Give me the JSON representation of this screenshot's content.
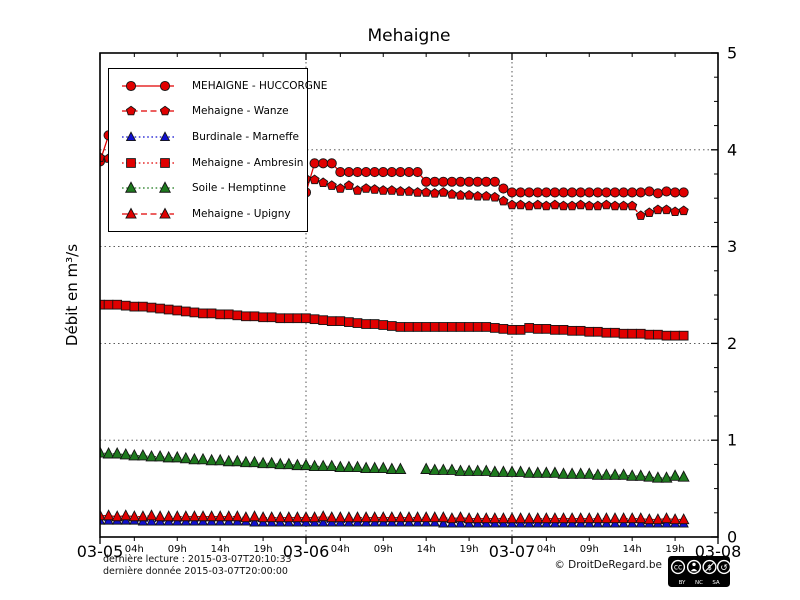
{
  "title": "Mehaigne",
  "ylabel": "Débit en m³/s",
  "footer": {
    "line1": "dernière lecture : 2015-03-07T20:10:33",
    "line2": "dernière donnée  2015-03-07T20:00:00",
    "copyright": "© DroitDeRegard.be",
    "cc_badge": {
      "cc": "cc",
      "terms": [
        "BY",
        "NC",
        "SA"
      ]
    }
  },
  "axes": {
    "ylim": [
      0,
      5
    ],
    "y_major_ticks": [
      0,
      1,
      2,
      3,
      4,
      5
    ],
    "y_minor_step": 0.25,
    "x_range_hours": [
      0,
      72
    ],
    "x_day_ticks": [
      {
        "hour": 0,
        "label": "03-05"
      },
      {
        "hour": 24,
        "label": "03-06"
      },
      {
        "hour": 48,
        "label": "03-07"
      },
      {
        "hour": 72,
        "label": "03-08"
      }
    ],
    "x_hour_ticks": [
      {
        "hour": 4,
        "label": "04h"
      },
      {
        "hour": 9,
        "label": "09h"
      },
      {
        "hour": 14,
        "label": "14h"
      },
      {
        "hour": 19,
        "label": "19h"
      },
      {
        "hour": 28,
        "label": "04h"
      },
      {
        "hour": 33,
        "label": "09h"
      },
      {
        "hour": 38,
        "label": "14h"
      },
      {
        "hour": 43,
        "label": "19h"
      },
      {
        "hour": 52,
        "label": "04h"
      },
      {
        "hour": 57,
        "label": "09h"
      },
      {
        "hour": 62,
        "label": "14h"
      },
      {
        "hour": 67,
        "label": "19h"
      }
    ],
    "grid_color": "#444444",
    "frame_color": "#000000"
  },
  "chart_data": {
    "type": "line",
    "title": "Mehaigne",
    "xlabel": "",
    "ylabel": "Débit en m³/s",
    "x_unit": "hours since 2015-03-05 00:00",
    "x_hours_step": 1,
    "legend_position": "upper-left",
    "grid": "dotted",
    "marker_edge": "#141414",
    "series": [
      {
        "name": "MEHAIGNE - HUCCORGNE",
        "color": "#e00000",
        "marker": "circle",
        "linestyle": "solid",
        "marker_size": 4.6,
        "values": [
          3.88,
          4.15,
          3.97,
          4.02,
          4.0,
          3.98,
          3.96,
          3.94,
          3.92,
          3.9,
          3.88,
          3.86,
          3.84,
          3.82,
          3.8,
          3.78,
          3.76,
          3.74,
          3.72,
          3.7,
          3.67,
          3.64,
          3.61,
          3.58,
          3.56,
          3.86,
          3.86,
          3.86,
          3.77,
          3.77,
          3.77,
          3.77,
          3.77,
          3.77,
          3.77,
          3.77,
          3.77,
          3.77,
          3.67,
          3.67,
          3.67,
          3.67,
          3.67,
          3.67,
          3.67,
          3.67,
          3.67,
          3.6,
          3.56,
          3.56,
          3.56,
          3.56,
          3.56,
          3.56,
          3.56,
          3.56,
          3.56,
          3.56,
          3.56,
          3.56,
          3.56,
          3.56,
          3.56,
          3.56,
          3.57,
          3.55,
          3.57,
          3.56,
          3.56
        ]
      },
      {
        "name": "Mehaigne - Wanze",
        "color": "#e00000",
        "marker": "pentagon",
        "linestyle": "dashed",
        "marker_size": 4.4,
        "values": [
          3.92,
          3.91,
          3.9,
          3.89,
          3.88,
          3.87,
          3.86,
          3.85,
          3.84,
          3.83,
          3.82,
          3.81,
          3.8,
          3.79,
          3.78,
          3.77,
          3.76,
          3.75,
          3.74,
          3.73,
          3.72,
          3.71,
          3.7,
          3.7,
          3.7,
          3.69,
          3.66,
          3.63,
          3.6,
          3.63,
          3.58,
          3.6,
          3.59,
          3.58,
          3.58,
          3.57,
          3.57,
          3.56,
          3.56,
          3.55,
          3.56,
          3.54,
          3.53,
          3.53,
          3.52,
          3.52,
          3.51,
          3.47,
          3.43,
          3.43,
          3.42,
          3.43,
          3.42,
          3.43,
          3.42,
          3.42,
          3.43,
          3.42,
          3.42,
          3.43,
          3.42,
          3.42,
          3.42,
          3.32,
          3.35,
          3.38,
          3.38,
          3.36,
          3.37
        ]
      },
      {
        "name": "Burdinale - Marneffe",
        "color": "#1010d0",
        "marker": "triangle",
        "linestyle": "dotted",
        "marker_size": 4.2,
        "values": [
          0.17,
          0.17,
          0.17,
          0.17,
          0.17,
          0.16,
          0.16,
          0.16,
          0.16,
          0.16,
          0.16,
          0.16,
          0.16,
          0.16,
          0.16,
          0.16,
          0.16,
          0.16,
          0.15,
          0.15,
          0.15,
          0.15,
          0.15,
          0.15,
          0.15,
          0.15,
          0.15,
          0.15,
          0.15,
          0.15,
          0.15,
          0.15,
          0.15,
          0.15,
          0.15,
          0.15,
          0.15,
          0.15,
          0.15,
          0.15,
          0.14,
          0.14,
          0.14,
          0.14,
          0.14,
          0.14,
          0.14,
          0.14,
          0.14,
          0.14,
          0.14,
          0.14,
          0.14,
          0.14,
          0.14,
          0.14,
          0.14,
          0.14,
          0.14,
          0.14,
          0.14,
          0.14,
          0.14,
          0.14,
          0.14,
          0.14,
          0.14,
          0.14,
          0.14
        ]
      },
      {
        "name": "Mehaigne - Ambresin",
        "color": "#e00000",
        "marker": "square",
        "linestyle": "dotted",
        "marker_size": 4.4,
        "values": [
          2.4,
          2.4,
          2.4,
          2.39,
          2.38,
          2.38,
          2.37,
          2.36,
          2.35,
          2.34,
          2.33,
          2.32,
          2.31,
          2.31,
          2.3,
          2.3,
          2.29,
          2.28,
          2.28,
          2.27,
          2.27,
          2.26,
          2.26,
          2.26,
          2.26,
          2.25,
          2.24,
          2.23,
          2.23,
          2.22,
          2.21,
          2.2,
          2.2,
          2.19,
          2.18,
          2.17,
          2.17,
          2.17,
          2.17,
          2.17,
          2.17,
          2.17,
          2.17,
          2.17,
          2.17,
          2.17,
          2.16,
          2.15,
          2.14,
          2.14,
          2.16,
          2.15,
          2.15,
          2.14,
          2.14,
          2.13,
          2.13,
          2.12,
          2.12,
          2.11,
          2.11,
          2.1,
          2.1,
          2.1,
          2.09,
          2.09,
          2.08,
          2.08,
          2.08
        ]
      },
      {
        "name": "Soile - Hemptinne",
        "color": "#1e7a1e",
        "marker": "triangle",
        "linestyle": "dotted",
        "marker_size": 5,
        "values": [
          0.87,
          0.86,
          0.86,
          0.85,
          0.84,
          0.84,
          0.83,
          0.83,
          0.82,
          0.82,
          0.81,
          0.8,
          0.8,
          0.79,
          0.79,
          0.78,
          0.78,
          0.77,
          0.77,
          0.76,
          0.76,
          0.75,
          0.75,
          0.74,
          0.74,
          0.73,
          0.73,
          0.73,
          0.72,
          0.72,
          0.72,
          0.71,
          0.71,
          0.71,
          0.7,
          0.7,
          null,
          null,
          0.7,
          0.69,
          0.69,
          0.69,
          0.68,
          0.68,
          0.68,
          0.68,
          0.67,
          0.67,
          0.67,
          0.67,
          0.66,
          0.66,
          0.66,
          0.66,
          0.65,
          0.65,
          0.65,
          0.65,
          0.64,
          0.64,
          0.64,
          0.64,
          0.63,
          0.63,
          0.62,
          0.61,
          0.61,
          0.63,
          0.62
        ]
      },
      {
        "name": "Mehaigne - Upigny",
        "color": "#e00000",
        "marker": "triangle",
        "linestyle": "dashed",
        "marker_size": 4.8,
        "values": [
          0.22,
          0.22,
          0.21,
          0.22,
          0.21,
          0.21,
          0.22,
          0.21,
          0.21,
          0.21,
          0.21,
          0.21,
          0.21,
          0.21,
          0.21,
          0.21,
          0.21,
          0.2,
          0.21,
          0.2,
          0.2,
          0.2,
          0.2,
          0.2,
          0.2,
          0.2,
          0.21,
          0.2,
          0.2,
          0.2,
          0.2,
          0.2,
          0.2,
          0.2,
          0.2,
          0.2,
          0.2,
          0.2,
          0.2,
          0.2,
          0.2,
          0.19,
          0.2,
          0.19,
          0.19,
          0.19,
          0.19,
          0.19,
          0.19,
          0.19,
          0.19,
          0.19,
          0.19,
          0.19,
          0.19,
          0.19,
          0.19,
          0.19,
          0.19,
          0.19,
          0.19,
          0.19,
          0.19,
          0.19,
          0.18,
          0.18,
          0.19,
          0.18,
          0.18
        ]
      }
    ]
  }
}
